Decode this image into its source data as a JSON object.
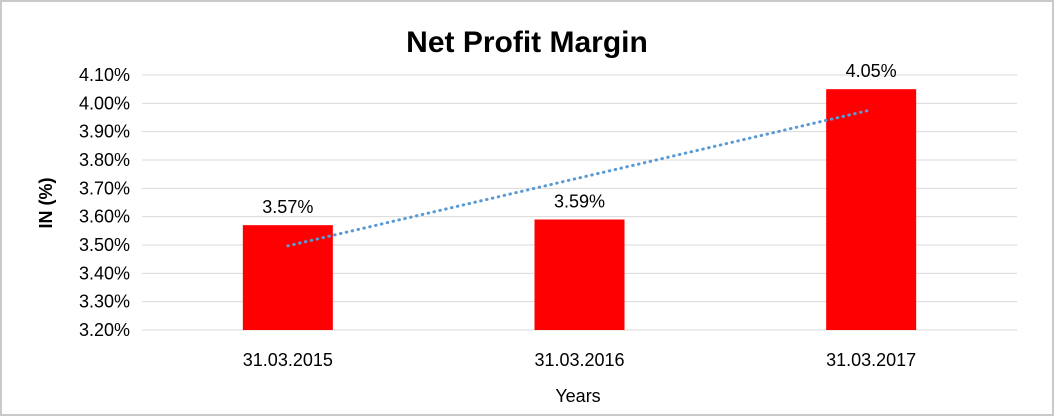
{
  "window": {
    "background_color": "#FFFFFF",
    "frame_border_color": "#C9C9C9"
  },
  "chart_data": {
    "type": "bar",
    "title": "Net Profit Margin",
    "xlabel": "Years",
    "ylabel": "IN (%)",
    "categories": [
      "31.03.2015",
      "31.03.2016",
      "31.03.2017"
    ],
    "values": [
      3.57,
      3.59,
      4.05
    ],
    "data_labels": [
      "3.57%",
      "3.59%",
      "4.05%"
    ],
    "ylim": [
      3.2,
      4.1
    ],
    "ytick_values": [
      3.2,
      3.3,
      3.4,
      3.5,
      3.6,
      3.7,
      3.8,
      3.9,
      4.0,
      4.1
    ],
    "ytick_labels": [
      "3.20%",
      "3.30%",
      "3.40%",
      "3.50%",
      "3.60%",
      "3.70%",
      "3.80%",
      "3.90%",
      "4.00%",
      "4.10%"
    ],
    "grid": true,
    "legend": "none",
    "bar_color": "#FF0000",
    "gridline_color": "#D9D9D9",
    "text_color": "#000000",
    "trendline": {
      "type": "linear",
      "style": "dotted",
      "color": "#5B9BD5",
      "start_value": 3.497,
      "end_value": 3.977
    }
  }
}
